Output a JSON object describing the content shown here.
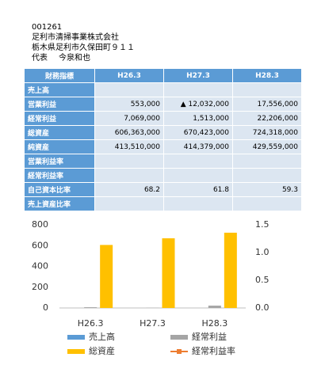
{
  "header": {
    "code": "001261",
    "company": "足利市清掃事業株式会社",
    "address": "栃木県足利市久保田町９１１",
    "representative": {
      "label": "代表",
      "name": "今泉和也"
    }
  },
  "table": {
    "columns": [
      "財務指標",
      "H26.3",
      "H27.3",
      "H28.3"
    ],
    "rows": [
      [
        "売上高",
        null,
        null,
        null
      ],
      [
        "営業利益",
        "553,000",
        "▲ 12,032,000",
        "17,556,000"
      ],
      [
        "経常利益",
        "7,069,000",
        "1,513,000",
        "22,206,000"
      ],
      [
        "総資産",
        "606,363,000",
        "670,423,000",
        "724,318,000"
      ],
      [
        "純資産",
        "413,510,000",
        "414,379,000",
        "429,559,000"
      ],
      [
        "営業利益率",
        null,
        null,
        null
      ],
      [
        "経常利益率",
        null,
        null,
        null
      ],
      [
        "自己資本比率",
        "68.2",
        "61.8",
        "59.3"
      ],
      [
        "売上資産比率",
        null,
        null,
        null
      ]
    ]
  },
  "chart_data": {
    "type": "bar",
    "categories": [
      "H26.3",
      "H27.3",
      "H28.3"
    ],
    "series": [
      {
        "name": "売上高",
        "color": "#5b9bd5",
        "values": [
          null,
          null,
          null
        ]
      },
      {
        "name": "経常利益",
        "color": "#a5a5a5",
        "values": [
          7.069,
          1.513,
          22.206
        ]
      },
      {
        "name": "総資産",
        "color": "#ffc000",
        "values": [
          606.363,
          670.423,
          724.318
        ]
      },
      {
        "name": "経常利益率",
        "color": "#ed7d31",
        "type": "line",
        "axis": "y2",
        "values": [
          null,
          null,
          null
        ]
      }
    ],
    "ylim": [
      0,
      800
    ],
    "yticks": [
      0,
      200,
      400,
      600,
      800
    ],
    "y2lim": [
      0,
      1.5
    ],
    "y2ticks": [
      {
        "value": 0,
        "label": "0.0"
      },
      0.5,
      {
        "value": 1,
        "label": "1.0"
      },
      1.5
    ]
  }
}
